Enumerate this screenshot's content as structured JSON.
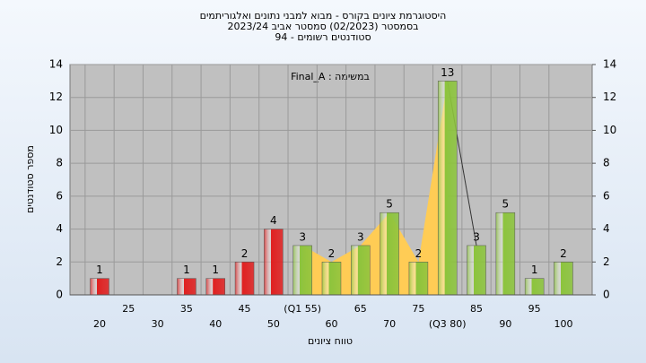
{
  "chart_data": {
    "type": "bar",
    "title": [
      "היסטוגרמת ציונים בקורס - מבוא למבני נתונים ואלגוריתמים",
      "בסמסטר  (02/2023)  סמסטר אביב 2023/24",
      "סטודנטים רשומים - 94"
    ],
    "annotation": "במשימה : Final_A",
    "x_label": "טווח ציונים",
    "y_label": "מספר סטודנטים",
    "categories": [
      "20",
      "25",
      "30",
      "35",
      "40",
      "45",
      "50",
      "(Q1 55)",
      "60",
      "65",
      "70",
      "75",
      "(Q3 80)",
      "85",
      "90",
      "95",
      "100"
    ],
    "values": [
      1,
      0,
      0,
      1,
      1,
      2,
      4,
      3,
      2,
      3,
      5,
      2,
      13,
      3,
      5,
      1,
      2
    ],
    "colors": [
      "#e02020",
      "#e02020",
      "#e02020",
      "#e02020",
      "#e02020",
      "#e02020",
      "#e02020",
      "#8cc43c",
      "#8cc43c",
      "#8cc43c",
      "#8cc43c",
      "#8cc43c",
      "#8cc43c",
      "#8cc43c",
      "#8cc43c",
      "#8cc43c",
      "#8cc43c"
    ],
    "highlight_color": "#ffcc55",
    "ylim": [
      0,
      14
    ],
    "yticks": [
      0,
      2,
      4,
      6,
      8,
      10,
      12,
      14
    ],
    "y2lim": [
      0,
      14
    ],
    "y2ticks": [
      0,
      2,
      4,
      6,
      8,
      10,
      12,
      14
    ],
    "grid": true
  }
}
